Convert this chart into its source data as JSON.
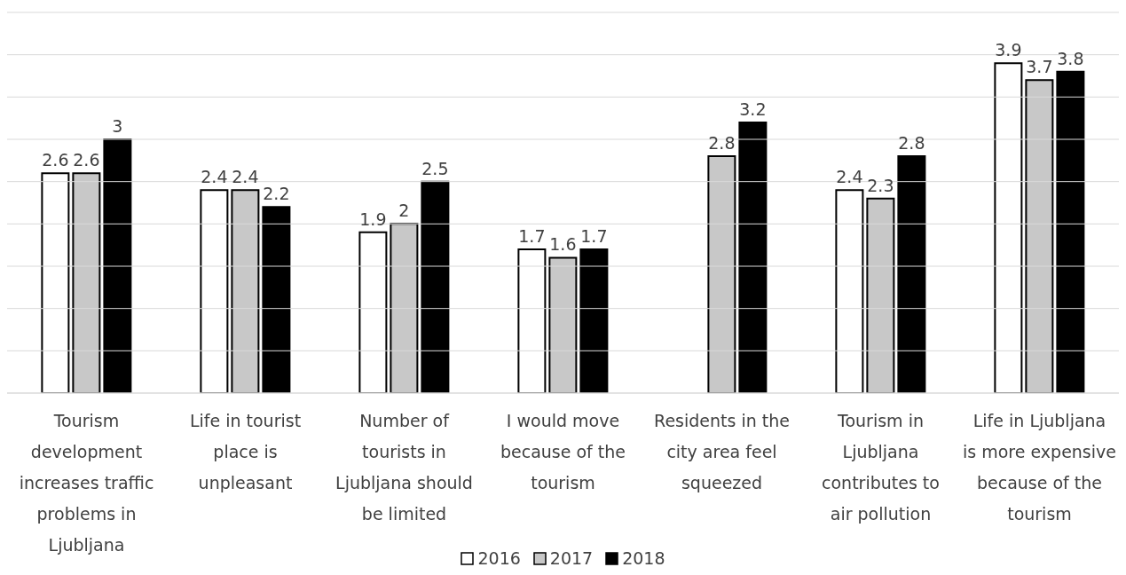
{
  "chart_data": {
    "type": "bar",
    "categories": [
      "Tourism development increases traffic problems in Ljubljana",
      "Life in tourist place is unpleasant",
      "Number of tourists in Ljubljana should be limited",
      "I would move because of the tourism",
      "Residents in the city area feel squeezed",
      "Tourism in Ljubljana contributes to air pollution",
      "Life in Ljubljana is more expensive because of the tourism"
    ],
    "series": [
      {
        "name": "2016",
        "color": "#ffffff",
        "values": [
          2.6,
          2.4,
          1.9,
          1.7,
          null,
          2.4,
          3.9
        ]
      },
      {
        "name": "2017",
        "color": "#c8c8c8",
        "values": [
          2.6,
          2.4,
          2,
          1.6,
          2.8,
          2.3,
          3.7
        ]
      },
      {
        "name": "2018",
        "color": "#000000",
        "values": [
          3,
          2.2,
          2.5,
          1.7,
          3.2,
          2.8,
          3.8
        ]
      }
    ],
    "ylim": [
      0,
      4.5
    ],
    "yticks": [
      {
        "value": 0,
        "label": null
      },
      {
        "value": 0.5,
        "label": null
      },
      {
        "value": 1,
        "label": null
      },
      {
        "value": 1.5,
        "label": null
      },
      {
        "value": 2,
        "label": null
      },
      {
        "value": 2.5,
        "label": null
      },
      {
        "value": 3,
        "label": null
      },
      {
        "value": 3.5,
        "label": null
      },
      {
        "value": 4,
        "label": null
      },
      {
        "value": 4.5,
        "label": null
      }
    ],
    "tick_labels": "x",
    "grid": "y",
    "legend": "bottom",
    "data_labels": true
  }
}
